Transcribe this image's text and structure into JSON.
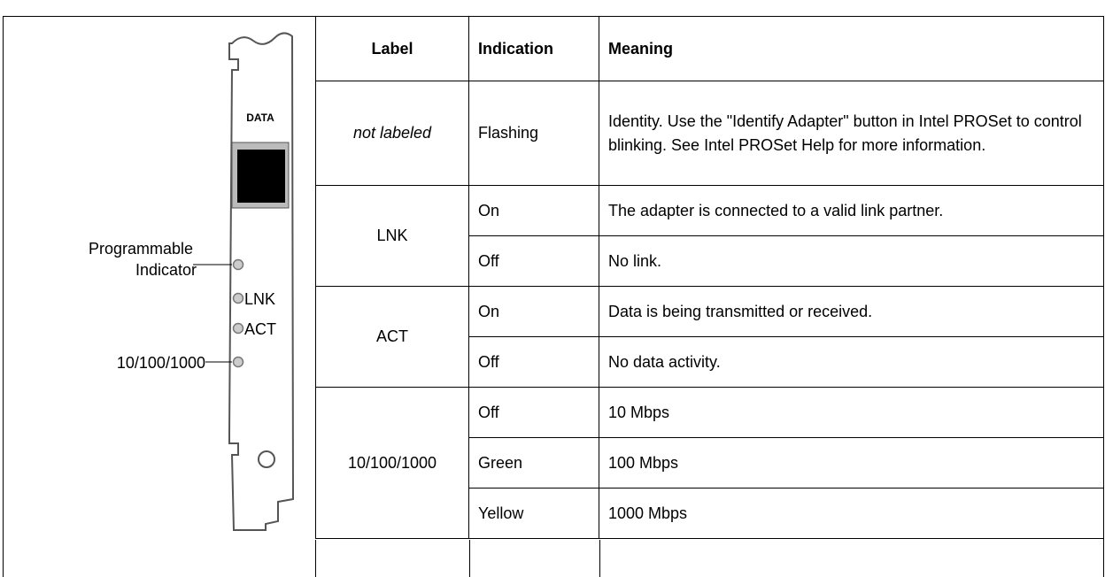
{
  "figure": {
    "port_label": "DATA",
    "programmable_indicator": [
      "Programmable",
      "Indicator"
    ],
    "led_labels": [
      "LNK",
      "ACT"
    ],
    "speed_callout": "10/100/1000"
  },
  "table": {
    "headers": [
      "Label",
      "Indication",
      "Meaning"
    ],
    "groups": [
      {
        "label": "not labeled",
        "italic": true,
        "rows": [
          [
            "Flashing",
            "Identity. Use the \"Identify Adapter\" button in Intel PROSet to control blinking. See Intel PROSet Help for more information."
          ]
        ]
      },
      {
        "label": "LNK",
        "rows": [
          [
            "On",
            "The adapter is connected to a valid link partner."
          ],
          [
            "Off",
            "No link."
          ]
        ]
      },
      {
        "label": "ACT",
        "rows": [
          [
            "On",
            "Data is being transmitted or received."
          ],
          [
            "Off",
            "No data activity."
          ]
        ]
      },
      {
        "label": "10/100/1000",
        "rows": [
          [
            "Off",
            "10 Mbps"
          ],
          [
            "Green",
            "100 Mbps"
          ],
          [
            "Yellow",
            "1000 Mbps"
          ]
        ]
      }
    ]
  }
}
